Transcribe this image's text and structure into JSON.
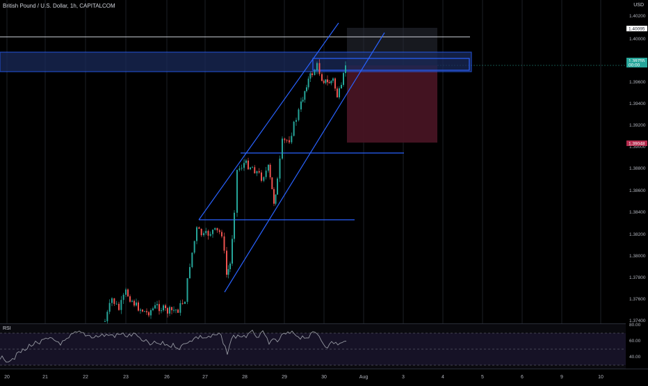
{
  "header": {
    "symbol_title": "British Pound / U.S. Dollar, 1h, CAPITALCOM",
    "currency": "USD"
  },
  "price_axis": {
    "ticks": [
      "1.40200",
      "1.40000",
      "1.39600",
      "1.39400",
      "1.39200",
      "1.39000",
      "1.38800",
      "1.38600",
      "1.38400",
      "1.38200",
      "1.38000",
      "1.37800",
      "1.37600",
      "1.37400"
    ],
    "badges": [
      {
        "name": "target-price-badge",
        "label": "1.40095",
        "bg": "#ffffff",
        "fg": "#131722"
      },
      {
        "name": "last-price-badge",
        "label": "1.39755",
        "bg": "#26a69a",
        "fg": "#ffffff"
      },
      {
        "name": "countdown-badge",
        "label": "00:00",
        "bg": "#26a69a",
        "fg": "#ffffff"
      },
      {
        "name": "stop-price-badge",
        "label": "1.39048",
        "bg": "#b2294b",
        "fg": "#ffffff"
      }
    ]
  },
  "time_axis": {
    "labels": [
      "20",
      "21",
      "22",
      "23",
      "26",
      "27",
      "28",
      "29",
      "30",
      "Aug",
      "3",
      "4",
      "5",
      "6",
      "9",
      "10"
    ]
  },
  "rsi_panel": {
    "title": "RSI",
    "levels": [
      "80.00",
      "60.00",
      "40.00"
    ]
  },
  "colors": {
    "bull": "#26a69a",
    "bear": "#ef5350",
    "drawing": "#2962ff",
    "zone_fill": "#1a2a5a",
    "stop_fill": "#4a1525",
    "target_fill": "#2a2e39",
    "rsi_line": "#9598a1"
  }
}
